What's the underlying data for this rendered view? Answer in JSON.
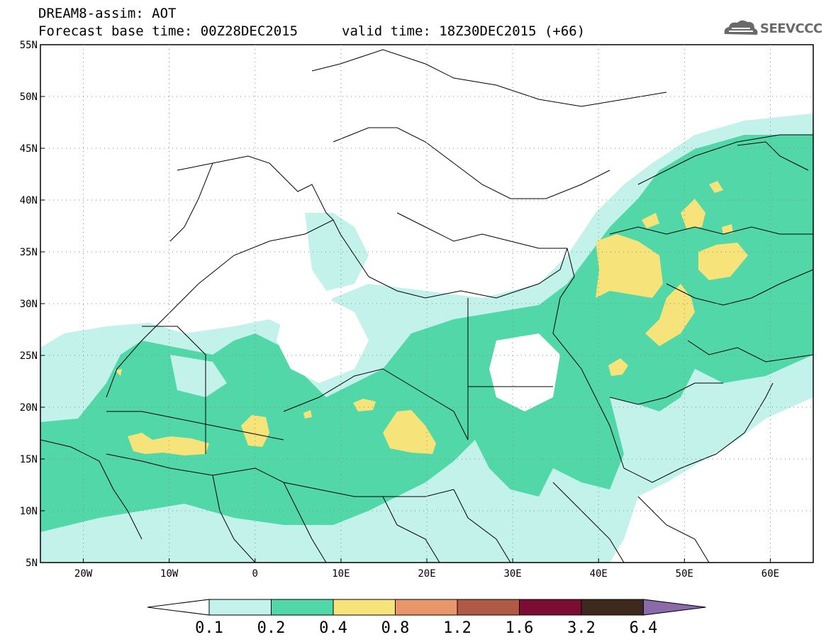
{
  "header": {
    "line1": "DREAM8-assim: AOT",
    "line2": "Forecast base time: 00Z28DEC2015",
    "valid": "valid time: 18Z30DEC2015 (+66)",
    "logo_text": "SEEVCCC"
  },
  "map": {
    "lon_range": [
      -25,
      65
    ],
    "lat_range": [
      5,
      55
    ],
    "lat_ticks": [
      "55N",
      "50N",
      "45N",
      "40N",
      "35N",
      "30N",
      "25N",
      "20N",
      "15N",
      "10N",
      "5N"
    ],
    "lon_ticks": [
      "20W",
      "10W",
      "0",
      "10E",
      "20E",
      "30E",
      "40E",
      "50E",
      "60E"
    ]
  },
  "legend": {
    "levels": [
      "0.1",
      "0.2",
      "0.4",
      "0.8",
      "1.2",
      "1.6",
      "3.2",
      "6.4"
    ],
    "colors": [
      "#c3f2ea",
      "#52d8a8",
      "#f6e37a",
      "#e8966a",
      "#b05a46",
      "#7c0c34",
      "#3e2a1c",
      "#8a6aa8"
    ]
  }
}
